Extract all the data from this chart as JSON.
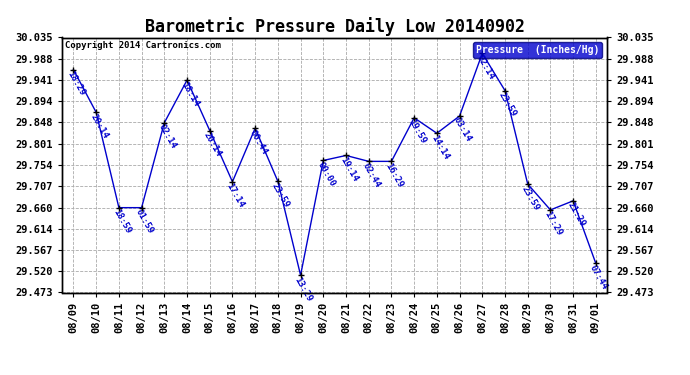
{
  "title": "Barometric Pressure Daily Low 20140902",
  "copyright": "Copyright 2014 Cartronics.com",
  "legend_label": "Pressure  (Inches/Hg)",
  "dates": [
    "08/09",
    "08/10",
    "08/11",
    "08/12",
    "08/13",
    "08/14",
    "08/15",
    "08/16",
    "08/17",
    "08/18",
    "08/19",
    "08/20",
    "08/21",
    "08/22",
    "08/23",
    "08/24",
    "08/25",
    "08/26",
    "08/27",
    "08/28",
    "08/29",
    "08/30",
    "08/31",
    "09/01"
  ],
  "values": [
    29.964,
    29.87,
    29.66,
    29.66,
    29.847,
    29.941,
    29.83,
    29.717,
    29.835,
    29.718,
    29.511,
    29.764,
    29.775,
    29.762,
    29.762,
    29.858,
    29.824,
    29.862,
    30.0,
    29.918,
    29.712,
    29.655,
    29.675,
    29.537
  ],
  "time_labels": [
    "18:29",
    "20:14",
    "18:59",
    "01:59",
    "02:14",
    "18:14",
    "20:14",
    "17:14",
    "00:44",
    "23:59",
    "13:29",
    "00:00",
    "19:14",
    "02:44",
    "16:29",
    "19:59",
    "14:14",
    "03:14",
    "02:14",
    "23:59",
    "23:59",
    "17:29",
    "21:29",
    "07:44"
  ],
  "line_color": "#0000cd",
  "marker_color": "#000000",
  "bg_color": "#ffffff",
  "grid_color": "#aaaaaa",
  "ylim_min": 29.473,
  "ylim_max": 30.035,
  "yticks": [
    29.473,
    29.52,
    29.567,
    29.614,
    29.66,
    29.707,
    29.754,
    29.801,
    29.848,
    29.894,
    29.941,
    29.988,
    30.035
  ],
  "title_fontsize": 12,
  "label_fontsize": 6.5,
  "tick_fontsize": 7.5,
  "legend_bg": "#0000cd",
  "legend_fg": "#ffffff"
}
